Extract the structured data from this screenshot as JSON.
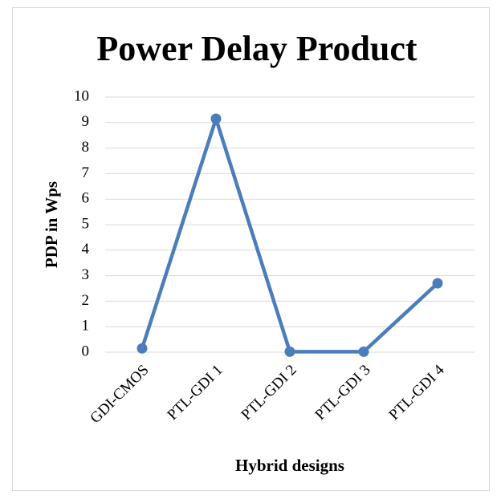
{
  "chart_data": {
    "type": "line",
    "title": "Power Delay Product",
    "x_label": "Hybrid designs",
    "y_label": "PDP in Wps",
    "categories": [
      "GDI-CMOS",
      "PTL-GDI 1",
      "PTL-GDI 2",
      "PTL-GDI 3",
      "PTL-GDI 4"
    ],
    "values": [
      0.15,
      9.15,
      0.02,
      0.02,
      2.7
    ],
    "color": "#4a7ebb",
    "ylim": [
      0,
      10
    ],
    "yticks": [
      0,
      1,
      2,
      3,
      4,
      5,
      6,
      7,
      8,
      9,
      10
    ],
    "grid": true
  }
}
